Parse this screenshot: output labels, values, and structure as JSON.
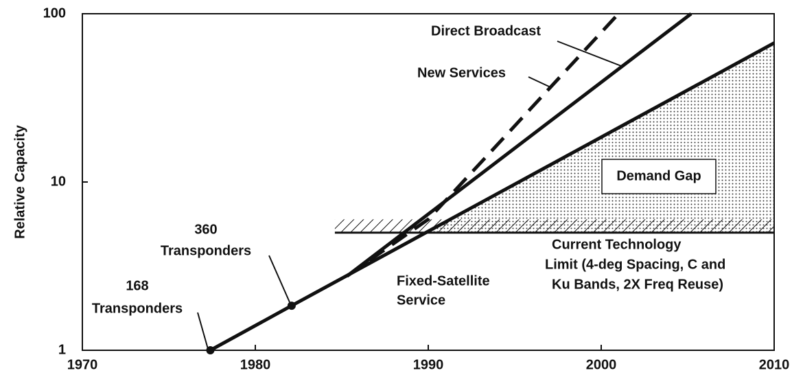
{
  "chart_data": {
    "type": "line",
    "ylabel": "Relative Capacity",
    "xlim": [
      1970,
      2010
    ],
    "xticks": [
      1970,
      1980,
      1990,
      2000,
      2010
    ],
    "ylim": [
      1,
      100
    ],
    "yticks": [
      1,
      10,
      100
    ],
    "log_y": true,
    "series": [
      {
        "color": "#111111",
        "dashed": false,
        "x": [
          1977.4,
          1982.1,
          2010
        ],
        "values": [
          1,
          1.84,
          67
        ]
      },
      {
        "color": "#111111",
        "dashed": false,
        "x": [
          1985.3,
          2005.2
        ],
        "values": [
          2.76,
          100
        ]
      },
      {
        "color": "#111111",
        "dashed": true,
        "x": [
          1985.3,
          1990,
          2001
        ],
        "values": [
          2.76,
          6,
          100
        ]
      }
    ],
    "markers": {
      "x": [
        1977.4,
        1982.1
      ],
      "values": [
        1,
        1.84
      ]
    },
    "limit": {
      "x": [
        1984.6,
        2010
      ],
      "values": [
        5,
        5
      ],
      "hatch_top": 6
    },
    "annotations": [
      {
        "lines": [
          "Direct Broadcast"
        ]
      },
      {
        "lines": [
          "New Services"
        ]
      },
      {
        "lines": [
          "Demand Gap"
        ]
      },
      {
        "lines": [
          "360",
          "Transponders"
        ]
      },
      {
        "lines": [
          "168",
          "Transponders"
        ]
      },
      {
        "lines": [
          "Fixed-Satellite",
          "Service"
        ]
      },
      {
        "lines": [
          "Current Technology",
          "Limit (4-deg Spacing, C and",
          "Ku Bands, 2X Freq Reuse)"
        ]
      }
    ]
  }
}
